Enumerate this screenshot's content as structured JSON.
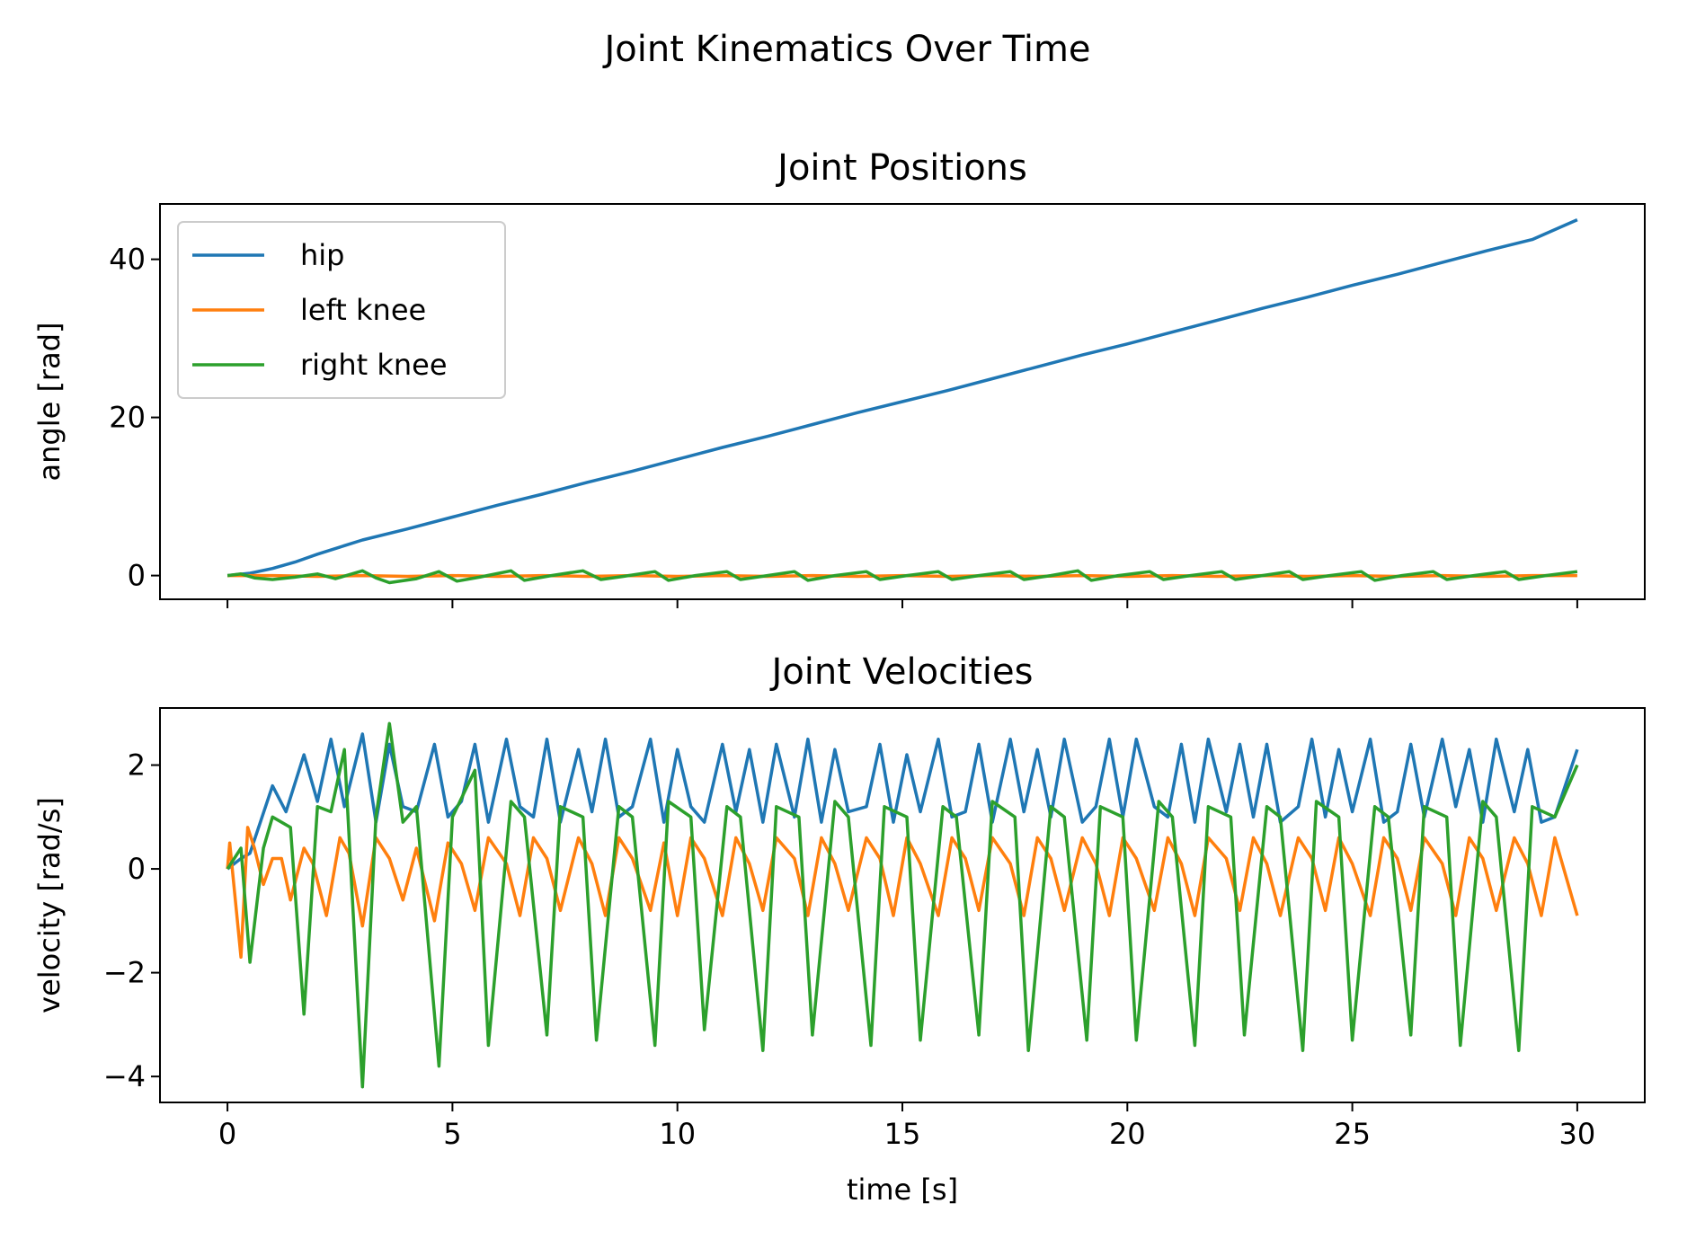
{
  "figure": {
    "suptitle": "Joint Kinematics Over Time"
  },
  "chart_data": [
    {
      "type": "line",
      "title": "Joint Positions",
      "xlabel": "",
      "ylabel": "angle [rad]",
      "xlim": [
        -1.5,
        31.5
      ],
      "ylim": [
        -3.0,
        47.0
      ],
      "xticks": [
        0,
        5,
        10,
        15,
        20,
        25,
        30
      ],
      "xtick_labels_visible": false,
      "yticks": [
        0,
        20,
        40
      ],
      "ytick_labels": [
        "0",
        "20",
        "40"
      ],
      "grid": false,
      "legend": {
        "placement": "upper-left",
        "entries": [
          "hip",
          "left knee",
          "right knee"
        ]
      },
      "series": [
        {
          "name": "hip",
          "color": "#1f77b4",
          "x": [
            0,
            0.5,
            1,
            1.5,
            2,
            2.5,
            3,
            4,
            5,
            6,
            7,
            8,
            9,
            10,
            11,
            12,
            13,
            14,
            15,
            16,
            17,
            18,
            19,
            20,
            21,
            22,
            23,
            24,
            25,
            26,
            27,
            28,
            29,
            30
          ],
          "y": [
            0,
            0.3,
            0.9,
            1.7,
            2.7,
            3.6,
            4.5,
            5.9,
            7.4,
            8.9,
            10.3,
            11.8,
            13.2,
            14.7,
            16.2,
            17.6,
            19.1,
            20.6,
            22.0,
            23.4,
            24.9,
            26.4,
            27.9,
            29.3,
            30.8,
            32.3,
            33.8,
            35.2,
            36.7,
            38.1,
            39.6,
            41.1,
            42.5,
            45.0
          ]
        },
        {
          "name": "left knee",
          "color": "#ff7f0e",
          "x": [
            0,
            1,
            2,
            3,
            4,
            5,
            6,
            7,
            8,
            9,
            10,
            11,
            12,
            13,
            14,
            15,
            16,
            17,
            18,
            19,
            20,
            21,
            22,
            23,
            24,
            25,
            26,
            27,
            28,
            29,
            30
          ],
          "y": [
            0,
            0,
            -0.1,
            0,
            -0.1,
            0,
            -0.1,
            0,
            -0.1,
            0,
            -0.1,
            0,
            -0.1,
            0,
            -0.1,
            0,
            -0.1,
            0,
            -0.1,
            0,
            -0.1,
            0,
            -0.1,
            0,
            -0.1,
            0,
            -0.1,
            0,
            -0.1,
            0,
            0
          ]
        },
        {
          "name": "right knee",
          "color": "#2ca02c",
          "x": [
            0,
            0.3,
            0.6,
            1.0,
            1.5,
            2.0,
            2.4,
            3.0,
            3.3,
            3.6,
            4.2,
            4.7,
            5.1,
            5.6,
            6.3,
            6.6,
            7.2,
            7.9,
            8.3,
            8.8,
            9.5,
            9.8,
            10.4,
            11.1,
            11.4,
            12.0,
            12.6,
            12.9,
            13.5,
            14.2,
            14.5,
            15.1,
            15.8,
            16.1,
            16.7,
            17.4,
            17.7,
            18.3,
            18.9,
            19.2,
            19.8,
            20.5,
            20.8,
            21.4,
            22.1,
            22.4,
            23.0,
            23.6,
            23.9,
            24.5,
            25.2,
            25.5,
            26.1,
            26.8,
            27.1,
            27.7,
            28.4,
            28.7,
            29.3,
            30.0
          ],
          "y": [
            0,
            0.2,
            -0.3,
            -0.5,
            -0.2,
            0.2,
            -0.4,
            0.6,
            -0.3,
            -0.9,
            -0.4,
            0.5,
            -0.7,
            -0.2,
            0.6,
            -0.6,
            0.0,
            0.6,
            -0.5,
            -0.1,
            0.5,
            -0.6,
            0.0,
            0.5,
            -0.5,
            0.0,
            0.5,
            -0.6,
            0.0,
            0.5,
            -0.5,
            0.0,
            0.5,
            -0.5,
            0.0,
            0.5,
            -0.5,
            0.0,
            0.6,
            -0.6,
            0.0,
            0.5,
            -0.5,
            0.0,
            0.5,
            -0.5,
            0.0,
            0.5,
            -0.5,
            0.0,
            0.5,
            -0.6,
            0.0,
            0.5,
            -0.5,
            0.0,
            0.5,
            -0.5,
            0.0,
            0.5
          ]
        }
      ]
    },
    {
      "type": "line",
      "title": "Joint Velocities",
      "xlabel": "time [s]",
      "ylabel": "velocity [rad/s]",
      "xlim": [
        -1.5,
        31.5
      ],
      "ylim": [
        -4.5,
        3.1
      ],
      "xticks": [
        0,
        5,
        10,
        15,
        20,
        25,
        30
      ],
      "xtick_labels": [
        "0",
        "5",
        "10",
        "15",
        "20",
        "25",
        "30"
      ],
      "yticks": [
        -4,
        -2,
        0,
        2
      ],
      "ytick_labels": [
        "−4",
        "−2",
        "0",
        "2"
      ],
      "grid": false,
      "series": [
        {
          "name": "hip",
          "color": "#1f77b4",
          "x": [
            0,
            0.3,
            0.5,
            1.0,
            1.3,
            1.7,
            2.0,
            2.3,
            2.6,
            3.0,
            3.3,
            3.6,
            3.9,
            4.2,
            4.6,
            4.9,
            5.2,
            5.5,
            5.8,
            6.2,
            6.5,
            6.8,
            7.1,
            7.4,
            7.8,
            8.1,
            8.4,
            8.7,
            9.0,
            9.4,
            9.7,
            10.0,
            10.3,
            10.6,
            11.0,
            11.3,
            11.6,
            11.9,
            12.2,
            12.6,
            12.9,
            13.2,
            13.5,
            13.8,
            14.2,
            14.5,
            14.8,
            15.1,
            15.4,
            15.8,
            16.1,
            16.4,
            16.7,
            17.0,
            17.4,
            17.7,
            18.0,
            18.3,
            18.6,
            19.0,
            19.3,
            19.6,
            19.9,
            20.2,
            20.6,
            20.9,
            21.2,
            21.5,
            21.8,
            22.2,
            22.5,
            22.8,
            23.1,
            23.4,
            23.8,
            24.1,
            24.4,
            24.7,
            25.0,
            25.4,
            25.7,
            26.0,
            26.3,
            26.6,
            27.0,
            27.3,
            27.6,
            27.9,
            28.2,
            28.6,
            28.9,
            29.2,
            29.5,
            30.0
          ],
          "y": [
            0,
            0.2,
            0.3,
            1.6,
            1.1,
            2.2,
            1.3,
            2.5,
            1.2,
            2.6,
            0.9,
            2.4,
            1.2,
            1.1,
            2.4,
            1.0,
            1.3,
            2.4,
            0.9,
            2.5,
            1.2,
            1.0,
            2.5,
            0.9,
            2.3,
            1.1,
            2.5,
            1.0,
            1.2,
            2.5,
            0.9,
            2.3,
            1.2,
            0.9,
            2.4,
            1.1,
            2.3,
            0.9,
            2.4,
            1.0,
            2.5,
            0.9,
            2.3,
            1.1,
            1.2,
            2.4,
            0.9,
            2.2,
            1.1,
            2.5,
            1.0,
            1.1,
            2.4,
            0.9,
            2.5,
            1.1,
            2.3,
            1.0,
            2.5,
            0.9,
            1.2,
            2.5,
            1.0,
            2.5,
            1.2,
            1.0,
            2.4,
            0.9,
            2.5,
            1.1,
            2.4,
            1.0,
            2.4,
            0.9,
            1.2,
            2.5,
            1.0,
            2.3,
            1.1,
            2.5,
            0.9,
            1.1,
            2.4,
            1.0,
            2.5,
            1.2,
            2.3,
            0.9,
            2.5,
            1.1,
            2.3,
            0.9,
            1.0,
            2.3
          ]
        },
        {
          "name": "left knee",
          "color": "#ff7f0e",
          "x": [
            0,
            0.05,
            0.3,
            0.45,
            0.6,
            0.8,
            1.0,
            1.2,
            1.4,
            1.7,
            1.9,
            2.2,
            2.5,
            2.7,
            3.0,
            3.3,
            3.6,
            3.9,
            4.2,
            4.6,
            4.9,
            5.2,
            5.5,
            5.8,
            6.2,
            6.5,
            6.8,
            7.1,
            7.4,
            7.8,
            8.1,
            8.4,
            8.7,
            9.0,
            9.4,
            9.7,
            10.0,
            10.3,
            10.6,
            11.0,
            11.3,
            11.6,
            11.9,
            12.2,
            12.6,
            12.9,
            13.2,
            13.5,
            13.8,
            14.2,
            14.5,
            14.8,
            15.1,
            15.4,
            15.8,
            16.1,
            16.4,
            16.7,
            17.0,
            17.4,
            17.7,
            18.0,
            18.3,
            18.6,
            19.0,
            19.3,
            19.6,
            19.9,
            20.2,
            20.6,
            20.9,
            21.2,
            21.5,
            21.8,
            22.2,
            22.5,
            22.8,
            23.1,
            23.4,
            23.8,
            24.1,
            24.4,
            24.7,
            25.0,
            25.4,
            25.7,
            26.0,
            26.3,
            26.6,
            27.0,
            27.3,
            27.6,
            27.9,
            28.2,
            28.6,
            28.9,
            29.2,
            29.5,
            30.0
          ],
          "y": [
            0,
            0.5,
            -1.7,
            0.8,
            0.4,
            -0.3,
            0.2,
            0.2,
            -0.6,
            0.4,
            0.1,
            -0.9,
            0.6,
            0.3,
            -1.1,
            0.6,
            0.2,
            -0.6,
            0.4,
            -1.0,
            0.5,
            0.1,
            -0.8,
            0.6,
            0.1,
            -0.9,
            0.6,
            0.2,
            -0.8,
            0.6,
            0.1,
            -0.9,
            0.6,
            0.2,
            -0.8,
            0.5,
            -0.9,
            0.6,
            0.2,
            -0.9,
            0.6,
            0.1,
            -0.8,
            0.6,
            0.2,
            -0.9,
            0.6,
            0.1,
            -0.8,
            0.6,
            0.2,
            -0.9,
            0.6,
            0.1,
            -0.9,
            0.6,
            0.2,
            -0.8,
            0.6,
            0.1,
            -0.9,
            0.6,
            0.2,
            -0.8,
            0.6,
            0.1,
            -0.9,
            0.6,
            0.2,
            -0.8,
            0.6,
            0.1,
            -0.9,
            0.6,
            0.2,
            -0.8,
            0.6,
            0.1,
            -0.9,
            0.6,
            0.2,
            -0.8,
            0.6,
            0.1,
            -0.9,
            0.6,
            0.2,
            -0.8,
            0.6,
            0.1,
            -0.9,
            0.6,
            0.2,
            -0.8,
            0.6,
            0.1,
            -0.9,
            0.6,
            -0.9
          ]
        },
        {
          "name": "right knee",
          "color": "#2ca02c",
          "x": [
            0,
            0.3,
            0.5,
            0.8,
            1.0,
            1.4,
            1.7,
            2.0,
            2.3,
            2.6,
            3.0,
            3.3,
            3.6,
            3.9,
            4.2,
            4.7,
            5.0,
            5.5,
            5.8,
            6.3,
            6.6,
            7.1,
            7.4,
            7.9,
            8.2,
            8.7,
            9.0,
            9.5,
            9.8,
            10.3,
            10.6,
            11.1,
            11.4,
            11.9,
            12.2,
            12.7,
            13.0,
            13.5,
            13.8,
            14.3,
            14.6,
            15.1,
            15.4,
            15.9,
            16.2,
            16.7,
            17.0,
            17.5,
            17.8,
            18.3,
            18.6,
            19.1,
            19.4,
            19.9,
            20.2,
            20.7,
            21.0,
            21.5,
            21.8,
            22.3,
            22.6,
            23.1,
            23.4,
            23.9,
            24.2,
            24.7,
            25.0,
            25.5,
            25.8,
            26.3,
            26.6,
            27.1,
            27.4,
            27.9,
            28.2,
            28.7,
            29.0,
            29.5,
            30.0
          ],
          "y": [
            0,
            0.4,
            -1.8,
            0.4,
            1.0,
            0.8,
            -2.8,
            1.2,
            1.1,
            2.3,
            -4.2,
            1.0,
            2.8,
            0.9,
            1.2,
            -3.8,
            1.0,
            1.9,
            -3.4,
            1.3,
            1.0,
            -3.2,
            1.2,
            1.0,
            -3.3,
            1.2,
            1.0,
            -3.4,
            1.3,
            1.0,
            -3.1,
            1.2,
            1.0,
            -3.5,
            1.2,
            1.0,
            -3.2,
            1.3,
            1.0,
            -3.4,
            1.2,
            1.0,
            -3.3,
            1.2,
            1.0,
            -3.2,
            1.3,
            1.0,
            -3.5,
            1.2,
            1.0,
            -3.3,
            1.2,
            1.0,
            -3.3,
            1.3,
            1.0,
            -3.4,
            1.2,
            1.0,
            -3.2,
            1.2,
            1.0,
            -3.5,
            1.3,
            1.0,
            -3.3,
            1.2,
            1.0,
            -3.2,
            1.2,
            1.0,
            -3.4,
            1.3,
            1.0,
            -3.5,
            1.2,
            1.0,
            2.0
          ]
        }
      ]
    }
  ]
}
